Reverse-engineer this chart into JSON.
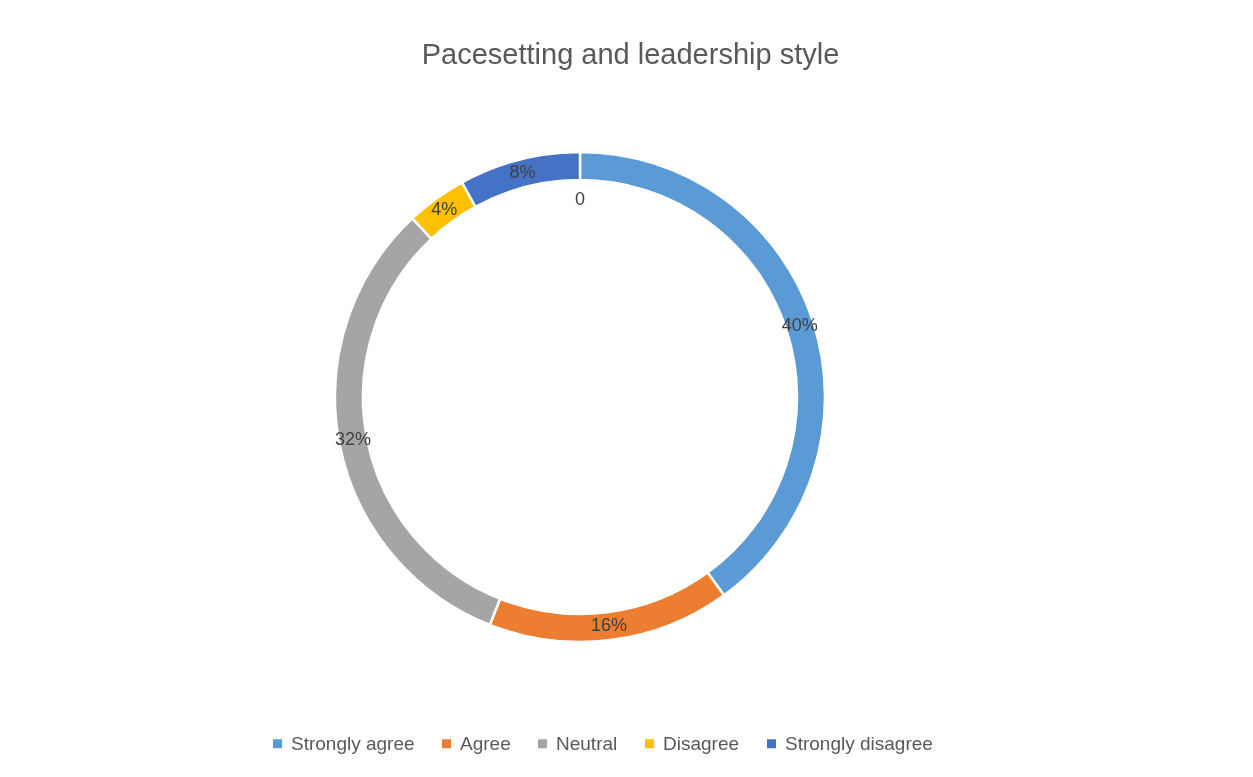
{
  "chart_data": {
    "type": "donut",
    "title": "Pacesetting and leadership style",
    "categories": [
      "Strongly agree",
      "Agree",
      "Neutral",
      "Disagree",
      "Strongly disagree"
    ],
    "values": [
      40,
      16,
      32,
      4,
      8
    ],
    "value_labels": [
      "40%",
      "16%",
      "32%",
      "4%",
      "8%"
    ],
    "colors": [
      "#5b9bd5",
      "#ed7d31",
      "#a5a5a5",
      "#ffc000",
      "#4472c4"
    ],
    "annotations": [
      "0"
    ],
    "legend": "bottom"
  }
}
